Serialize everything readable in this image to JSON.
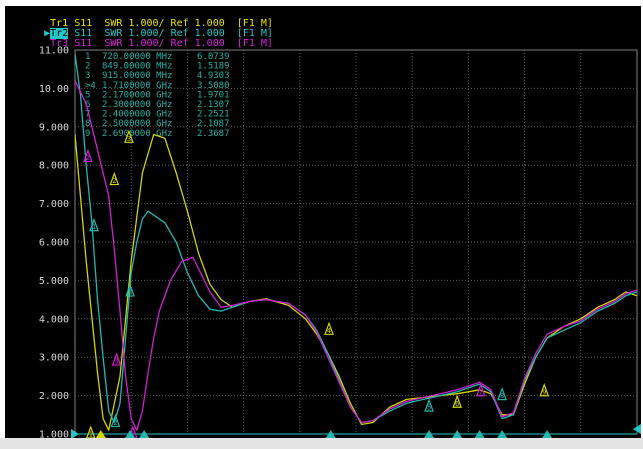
{
  "header": {
    "traces": [
      {
        "id": "Tr1",
        "text": "S11  SWR 1.000/ Ref 1.000  [F1 M]",
        "color": "#e8e800",
        "active": false
      },
      {
        "id": "Tr2",
        "text": "S11  SWR 1.000/ Ref 1.000  [F1 M]",
        "color": "#20c8c8",
        "active": true
      },
      {
        "id": "Tr3",
        "text": "S11  SWR 1.000/ Ref 1.000  [F1 M]",
        "color": "#e020e0",
        "active": false
      }
    ]
  },
  "marker_table": [
    {
      "num": "1",
      "freq": "720.00000 MHz",
      "value": "6.0739"
    },
    {
      "num": "2",
      "freq": "849.00000 MHz",
      "value": "1.5189"
    },
    {
      "num": "3",
      "freq": "915.00000 MHz",
      "value": "4.9303"
    },
    {
      "num": ">4",
      "freq": "1.7100000 GHz",
      "value": "3.5080"
    },
    {
      "num": "5",
      "freq": "2.1700000 GHz",
      "value": "1.9701"
    },
    {
      "num": "6",
      "freq": "2.3000000 GHz",
      "value": "2.1307"
    },
    {
      "num": "7",
      "freq": "2.4000000 GHz",
      "value": "2.2521"
    },
    {
      "num": "8",
      "freq": "2.5000000 GHz",
      "value": "2.1087"
    },
    {
      "num": "9",
      "freq": "2.6900000 GHz",
      "value": "2.3687"
    }
  ],
  "chart_data": {
    "type": "line",
    "yticks": [
      "11.00",
      "10.00",
      "9.000",
      "8.000",
      "7.000",
      "6.000",
      "5.000",
      "4.000",
      "3.000",
      "2.000",
      "1.000"
    ],
    "ylim": [
      1,
      11
    ],
    "xlim": [
      0,
      100
    ],
    "series": [
      {
        "key": "tr1",
        "color": "#d4d400",
        "points": [
          [
            0,
            8.8
          ],
          [
            2,
            5.5
          ],
          [
            4,
            2.6
          ],
          [
            5,
            1.4
          ],
          [
            6,
            1.1
          ],
          [
            8,
            2.5
          ],
          [
            10,
            5.5
          ],
          [
            12,
            7.8
          ],
          [
            14,
            8.8
          ],
          [
            16,
            8.7
          ],
          [
            18,
            7.8
          ],
          [
            20,
            6.8
          ],
          [
            22,
            5.7
          ],
          [
            24,
            4.9
          ],
          [
            26,
            4.5
          ],
          [
            28,
            4.3
          ],
          [
            31,
            4.45
          ],
          [
            34,
            4.52
          ],
          [
            38,
            4.35
          ],
          [
            41,
            4.0
          ],
          [
            43,
            3.6
          ],
          [
            45,
            3.1
          ],
          [
            47,
            2.5
          ],
          [
            49,
            1.8
          ],
          [
            51,
            1.25
          ],
          [
            53,
            1.3
          ],
          [
            56,
            1.7
          ],
          [
            59,
            1.9
          ],
          [
            62,
            1.95
          ],
          [
            65,
            2.0
          ],
          [
            68,
            2.05
          ],
          [
            70,
            2.1
          ],
          [
            72,
            2.15
          ],
          [
            74,
            2.05
          ],
          [
            76,
            1.5
          ],
          [
            78,
            1.5
          ],
          [
            80,
            2.3
          ],
          [
            82,
            3.0
          ],
          [
            84,
            3.5
          ],
          [
            87,
            3.8
          ],
          [
            90,
            4.0
          ],
          [
            93,
            4.3
          ],
          [
            96,
            4.5
          ],
          [
            98,
            4.7
          ],
          [
            100,
            4.6
          ]
        ]
      },
      {
        "key": "tr2",
        "color": "#20b8b0",
        "points": [
          [
            0,
            10.9
          ],
          [
            1,
            9.8
          ],
          [
            2,
            8.0
          ],
          [
            3,
            6.5
          ],
          [
            4,
            4.5
          ],
          [
            5,
            3.0
          ],
          [
            6,
            1.6
          ],
          [
            7,
            1.3
          ],
          [
            8,
            1.8
          ],
          [
            9,
            3.5
          ],
          [
            10,
            5.2
          ],
          [
            11,
            6.0
          ],
          [
            12,
            6.6
          ],
          [
            13,
            6.8
          ],
          [
            14,
            6.7
          ],
          [
            16,
            6.5
          ],
          [
            18,
            6.0
          ],
          [
            20,
            5.2
          ],
          [
            22,
            4.6
          ],
          [
            24,
            4.25
          ],
          [
            26,
            4.2
          ],
          [
            28,
            4.3
          ],
          [
            31,
            4.45
          ],
          [
            34,
            4.5
          ],
          [
            38,
            4.4
          ],
          [
            41,
            4.1
          ],
          [
            43,
            3.7
          ],
          [
            45,
            3.1
          ],
          [
            47,
            2.4
          ],
          [
            49,
            1.7
          ],
          [
            51,
            1.3
          ],
          [
            53,
            1.35
          ],
          [
            56,
            1.6
          ],
          [
            59,
            1.8
          ],
          [
            62,
            1.9
          ],
          [
            65,
            2.0
          ],
          [
            68,
            2.1
          ],
          [
            70,
            2.2
          ],
          [
            72,
            2.3
          ],
          [
            74,
            2.1
          ],
          [
            76,
            1.4
          ],
          [
            78,
            1.5
          ],
          [
            80,
            2.4
          ],
          [
            82,
            3.0
          ],
          [
            84,
            3.5
          ],
          [
            87,
            3.7
          ],
          [
            90,
            3.9
          ],
          [
            93,
            4.2
          ],
          [
            96,
            4.4
          ],
          [
            98,
            4.6
          ],
          [
            100,
            4.7
          ]
        ]
      },
      {
        "key": "tr3",
        "color": "#d020d0",
        "points": [
          [
            0,
            10.2
          ],
          [
            2,
            9.6
          ],
          [
            4,
            8.4
          ],
          [
            6,
            7.2
          ],
          [
            7,
            5.8
          ],
          [
            8,
            4.2
          ],
          [
            9,
            2.5
          ],
          [
            10,
            1.4
          ],
          [
            11,
            1.1
          ],
          [
            12,
            1.6
          ],
          [
            13,
            2.6
          ],
          [
            14,
            3.5
          ],
          [
            15,
            4.2
          ],
          [
            17,
            5.0
          ],
          [
            19,
            5.5
          ],
          [
            21,
            5.6
          ],
          [
            22,
            5.3
          ],
          [
            24,
            4.7
          ],
          [
            26,
            4.3
          ],
          [
            28,
            4.35
          ],
          [
            31,
            4.45
          ],
          [
            34,
            4.5
          ],
          [
            38,
            4.4
          ],
          [
            41,
            4.1
          ],
          [
            43,
            3.65
          ],
          [
            45,
            3.0
          ],
          [
            47,
            2.35
          ],
          [
            49,
            1.7
          ],
          [
            51,
            1.3
          ],
          [
            53,
            1.35
          ],
          [
            56,
            1.65
          ],
          [
            59,
            1.85
          ],
          [
            62,
            1.95
          ],
          [
            65,
            2.05
          ],
          [
            68,
            2.15
          ],
          [
            70,
            2.25
          ],
          [
            72,
            2.35
          ],
          [
            74,
            2.15
          ],
          [
            76,
            1.45
          ],
          [
            78,
            1.55
          ],
          [
            80,
            2.45
          ],
          [
            82,
            3.1
          ],
          [
            84,
            3.6
          ],
          [
            87,
            3.8
          ],
          [
            90,
            3.95
          ],
          [
            93,
            4.25
          ],
          [
            96,
            4.45
          ],
          [
            98,
            4.65
          ],
          [
            100,
            4.75
          ]
        ]
      }
    ],
    "markers": [
      {
        "label": "1",
        "x": 2.8,
        "y": 1.0,
        "color": "#d4d400"
      },
      {
        "label": "1",
        "x": 3.4,
        "y": 6.4,
        "color": "#20b8b0"
      },
      {
        "label": "2",
        "x": 2.3,
        "y": 8.2,
        "color": "#d020d0"
      },
      {
        "label": "2",
        "x": 7.2,
        "y": 1.3,
        "color": "#20b8b0"
      },
      {
        "label": "2",
        "x": 7.0,
        "y": 7.6,
        "color": "#d4d400"
      },
      {
        "label": "3",
        "x": 7.4,
        "y": 2.9,
        "color": "#d020d0"
      },
      {
        "label": "3",
        "x": 9.8,
        "y": 4.7,
        "color": "#20b8b0"
      },
      {
        "label": "3",
        "x": 9.6,
        "y": 8.7,
        "color": "#d4d400"
      },
      {
        "label": "1",
        "x": 10.3,
        "y": 1.0,
        "color": "#d020d0"
      },
      {
        "label": "4",
        "x": 45.2,
        "y": 3.7,
        "color": "#d4d400"
      },
      {
        "label": "5",
        "x": 63.0,
        "y": 1.7,
        "color": "#20b8b0"
      },
      {
        "label": "6",
        "x": 68.0,
        "y": 1.8,
        "color": "#d4d400"
      },
      {
        "label": "7",
        "x": 72.2,
        "y": 2.1,
        "color": "#d020d0"
      },
      {
        "label": "8",
        "x": 76.0,
        "y": 2.0,
        "color": "#20b8b0"
      },
      {
        "label": "9",
        "x": 83.5,
        "y": 2.1,
        "color": "#d4d400"
      }
    ],
    "xmarkers": [
      {
        "x": 4.6,
        "color": "#d4d400"
      },
      {
        "x": 9.8,
        "color": "#20b8b0"
      },
      {
        "x": 12.3,
        "color": "#20b8b0"
      },
      {
        "x": 45.5,
        "color": "#20b8b0"
      },
      {
        "x": 63.0,
        "color": "#20b8b0"
      },
      {
        "x": 68.0,
        "color": "#20b8b0"
      },
      {
        "x": 72.0,
        "color": "#20b8b0"
      },
      {
        "x": 76.0,
        "color": "#20b8b0"
      },
      {
        "x": 84.0,
        "color": "#20b8b0"
      }
    ]
  }
}
